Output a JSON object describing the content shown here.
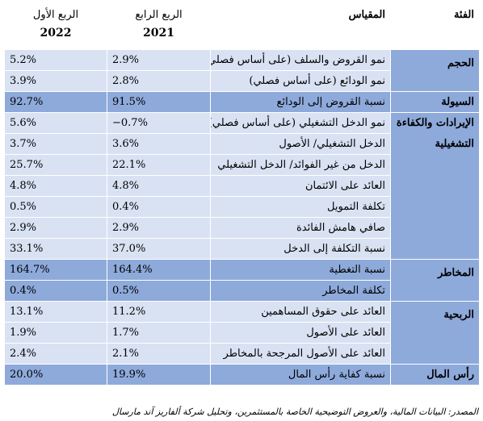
{
  "header": {
    "category": "الفئة",
    "metric": "المقياس",
    "q4_label": "الربع الرابع",
    "q4_year": "2021",
    "q1_label": "الربع الأول",
    "q1_year": "2022"
  },
  "rows": [
    {
      "category": "الحجم",
      "metric": "نمو القروض والسلف (على أساس فصلي)",
      "q4_2021": "2.9%",
      "q1_2022": "5.2%"
    },
    {
      "metric": "نمو الودائع (على أساس فصلي)",
      "q4_2021": "2.8%",
      "q1_2022": "3.9%"
    },
    {
      "category": "السيولة",
      "metric": "نسبة القروض إلى الودائع",
      "q4_2021": "91.5%",
      "q1_2022": "92.7%"
    },
    {
      "category": "الإيرادات والكفاءة التشغيلية",
      "metric": "نمو الدخل التشغيلي (على أساس فصلي)",
      "q4_2021": "−0.7%",
      "q1_2022": "5.6%"
    },
    {
      "metric": "الدخل التشغيلي/ الأصول",
      "q4_2021": "3.6%",
      "q1_2022": "3.7%"
    },
    {
      "metric": "الدخل من غير الفوائد/ الدخل التشغيلي",
      "q4_2021": "22.1%",
      "q1_2022": "25.7%"
    },
    {
      "metric": "العائد على الائتمان",
      "q4_2021": "4.8%",
      "q1_2022": "4.8%"
    },
    {
      "metric": "تكلفة التمويل",
      "q4_2021": "0.4%",
      "q1_2022": "0.5%"
    },
    {
      "metric": "صافي هامش الفائدة",
      "q4_2021": "2.9%",
      "q1_2022": "2.9%"
    },
    {
      "metric": "نسبة التكلفة إلى الدخل",
      "q4_2021": "37.0%",
      "q1_2022": "33.1%"
    },
    {
      "category": "المخاطر",
      "metric": "نسبة التغطية",
      "q4_2021": "164.4%",
      "q1_2022": "164.7%"
    },
    {
      "metric": "تكلفة المخاطر",
      "q4_2021": "0.5%",
      "q1_2022": "0.4%"
    },
    {
      "category": "الربحية",
      "metric": "العائد على حقوق المساهمين",
      "q4_2021": "11.2%",
      "q1_2022": "13.1%"
    },
    {
      "metric": "العائد على الأصول",
      "q4_2021": "1.7%",
      "q1_2022": "1.9%"
    },
    {
      "metric": "العائد على الأصول المرجحة بالمخاطر",
      "q4_2021": "2.1%",
      "q1_2022": "2.4%"
    },
    {
      "category": "رأس المال",
      "metric": "نسبة كفاية رأس المال",
      "q4_2021": "19.9%",
      "q1_2022": "20.0%"
    }
  ],
  "source": "المصدر: البيانات المالية، والعروض التوضيحية الخاصة بالمستثمرين، وتحليل شركة ألفاريز آند مارسال",
  "colors": {
    "light_row": "#d9e2f3",
    "dark_row": "#8eaadb",
    "category_fill": "#8eaadb"
  }
}
